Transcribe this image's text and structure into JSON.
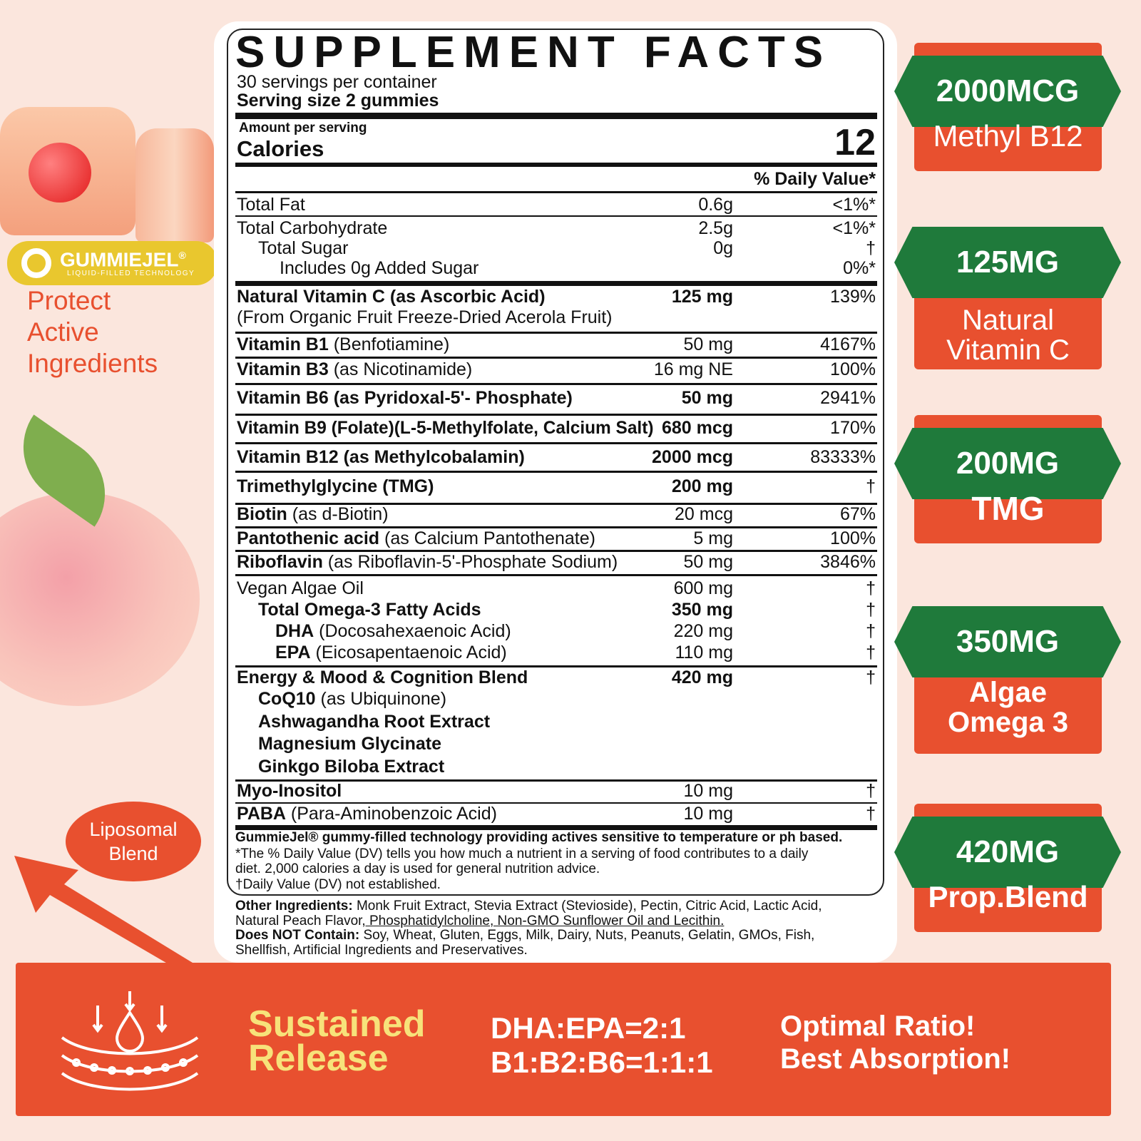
{
  "title": "SUPPLEMENT FACTS",
  "servings": "30 servings per container",
  "serving_size": "Serving size 2 gummies",
  "amount_per_serving": "Amount per serving",
  "calories_label": "Calories",
  "calories_value": "12",
  "dv_header": "% Daily Value*",
  "rows": [
    {
      "name": "",
      "rest": "Total Fat",
      "amount": "0.6g",
      "dv": "<1%*"
    },
    {
      "name": "",
      "rest": "Total Carbohydrate",
      "amount": "2.5g",
      "dv": "<1%*"
    },
    {
      "name": "",
      "rest": "Total Sugar",
      "amount": "0g",
      "dv": "†"
    },
    {
      "name": "",
      "rest": "Includes 0g Added Sugar",
      "amount": "",
      "dv": "0%*"
    },
    {
      "name": "Natural Vitamin C (as Ascorbic Acid)",
      "rest": "",
      "amount": "125 mg",
      "dv": "139%"
    },
    {
      "name": "",
      "rest": "(From Organic Fruit Freeze-Dried Acerola Fruit)",
      "amount": "",
      "dv": ""
    },
    {
      "name": "Vitamin B1",
      "rest": " (Benfotiamine)",
      "amount": "50 mg",
      "dv": "4167%"
    },
    {
      "name": "Vitamin B3",
      "rest": " (as Nicotinamide)",
      "amount": "16 mg NE",
      "dv": "100%"
    },
    {
      "name": "Vitamin B6 (as Pyridoxal-5'- Phosphate)",
      "rest": "",
      "amount": "50 mg",
      "dv": "2941%"
    },
    {
      "name": "Vitamin B9 (Folate)(L-5-Methylfolate, Calcium Salt)",
      "rest": "",
      "amount": "680 mcg",
      "dv": "170%"
    },
    {
      "name": "Vitamin B12 (as Methylcobalamin)",
      "rest": "",
      "amount": "2000 mcg",
      "dv": "83333%"
    },
    {
      "name": "Trimethylglycine (TMG)",
      "rest": "",
      "amount": "200 mg",
      "dv": "†"
    },
    {
      "name": "Biotin",
      "rest": " (as d-Biotin)",
      "amount": "20 mcg",
      "dv": "67%"
    },
    {
      "name": "Pantothenic acid",
      "rest": " (as Calcium Pantothenate)",
      "amount": "5 mg",
      "dv": "100%"
    },
    {
      "name": "Riboflavin",
      "rest": " (as Riboflavin-5'-Phosphate Sodium)",
      "amount": "50 mg",
      "dv": "3846%"
    },
    {
      "name": "",
      "rest": "Vegan Algae Oil",
      "amount": "600 mg",
      "dv": "†"
    },
    {
      "name": "Total Omega-3 Fatty Acids",
      "rest": "",
      "amount": "350 mg",
      "dv": "†"
    },
    {
      "name": "DHA",
      "rest": " (Docosahexaenoic Acid)",
      "amount": "220 mg",
      "dv": "†"
    },
    {
      "name": "EPA",
      "rest": " (Eicosapentaenoic Acid)",
      "amount": "110 mg",
      "dv": "†"
    },
    {
      "name": "Energy & Mood & Cognition Blend",
      "rest": "",
      "amount": "420 mg",
      "dv": "†"
    },
    {
      "name": "CoQ10",
      "rest": " (as Ubiquinone)",
      "amount": "",
      "dv": ""
    },
    {
      "name": "Ashwagandha Root Extract",
      "rest": "",
      "amount": "",
      "dv": ""
    },
    {
      "name": "Magnesium Glycinate",
      "rest": "",
      "amount": "",
      "dv": ""
    },
    {
      "name": "Ginkgo Biloba Extract",
      "rest": "",
      "amount": "",
      "dv": ""
    },
    {
      "name": "Myo-Inositol",
      "rest": "",
      "amount": "10 mg",
      "dv": "†"
    },
    {
      "name": "PABA",
      "rest": " (Para-Aminobenzoic Acid)",
      "amount": "10 mg",
      "dv": "†"
    }
  ],
  "footnotes": {
    "tech": "GummieJel® gummy-filled technology providing actives sensitive to temperature or ph based.",
    "dv1": "*The % Daily Value (DV) tells you how much a nutrient in a serving of food contributes to a daily",
    "dv2": "diet. 2,000 calories a day is used for general nutrition advice.",
    "dagger": "†Daily Value (DV) not established.",
    "other_label": "Other Ingredients:",
    "other1": " Monk Fruit Extract, Stevia Extract (Stevioside), Pectin, Citric Acid, Lactic Acid,",
    "other2a": "Natural Peach Flavor",
    "other2b": ", Phosphatidylcholine, Non-GMO Sunflower Oil and Lecithin.",
    "not_label": "Does NOT Contain:",
    "not1": " Soy, Wheat, Gluten, Eggs, Milk, Dairy, Nuts, Peanuts, Gelatin, GMOs, Fish,",
    "not2": "Shellfish, Artificial Ingredients and Preservatives."
  },
  "brand": {
    "name": "GUMMIEJEL",
    "reg": "®",
    "tagline": "LIQUID-FILLED TECHNOLOGY"
  },
  "protect": [
    "Protect",
    "Active",
    "Ingredients"
  ],
  "liposomal": [
    "Liposomal",
    "Blend"
  ],
  "badges": [
    {
      "value": "2000MCG",
      "label": [
        "Methyl B12"
      ]
    },
    {
      "value": "125MG",
      "label": [
        "Natural",
        "Vitamin C"
      ]
    },
    {
      "value": "200MG",
      "label": [
        "TMG"
      ]
    },
    {
      "value": "350MG",
      "label": [
        "Algae",
        "Omega 3"
      ]
    },
    {
      "value": "420MG",
      "label": [
        "Prop.Blend"
      ]
    }
  ],
  "bottom": {
    "sustained": [
      "Sustained",
      "Release"
    ],
    "ratios": [
      "DHA:EPA=2:1",
      "B1:B2:B6=1:1:1"
    ],
    "optimal": [
      "Optimal Ratio!",
      "Best Absorption!"
    ]
  },
  "colors": {
    "accent": "#e8502f",
    "green": "#1f7a3b",
    "yellow": "#f7e27a",
    "brand_yellow": "#e9c72e"
  }
}
